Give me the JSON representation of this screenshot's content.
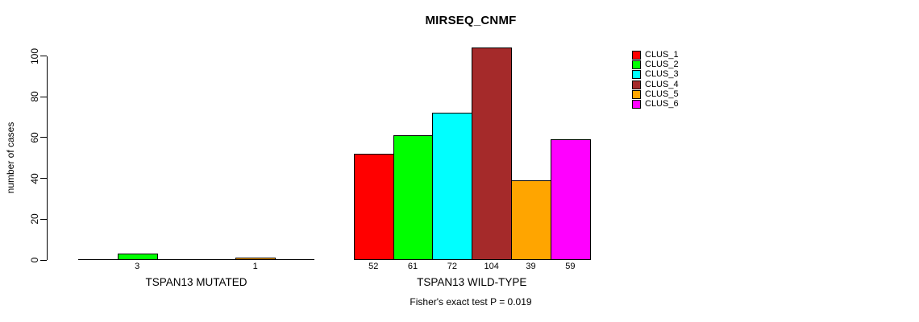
{
  "title": "MIRSEQ_CNMF",
  "footer": "Fisher's exact test P = 0.019",
  "y_axis": {
    "label": "number of cases",
    "ticks": [
      0,
      20,
      40,
      60,
      80,
      100
    ]
  },
  "legend": {
    "position": "top-right",
    "items": [
      {
        "label": "CLUS_1",
        "color": "#FF0000"
      },
      {
        "label": "CLUS_2",
        "color": "#00FF00"
      },
      {
        "label": "CLUS_3",
        "color": "#00FFFF"
      },
      {
        "label": "CLUS_4",
        "color": "#A52A2A"
      },
      {
        "label": "CLUS_5",
        "color": "#FFA500"
      },
      {
        "label": "CLUS_6",
        "color": "#FF00FF"
      }
    ]
  },
  "chart_data": {
    "type": "bar",
    "title": "MIRSEQ_CNMF",
    "xlabel": "",
    "ylabel": "number of cases",
    "ylim": [
      0,
      100
    ],
    "yticks": [
      0,
      20,
      40,
      60,
      80,
      100
    ],
    "grid": false,
    "legend_position": "top-right",
    "series": [
      "CLUS_1",
      "CLUS_2",
      "CLUS_3",
      "CLUS_4",
      "CLUS_5",
      "CLUS_6"
    ],
    "colors": [
      "#FF0000",
      "#00FF00",
      "#00FFFF",
      "#A52A2A",
      "#FFA500",
      "#FF00FF"
    ],
    "groups": [
      {
        "label": "TSPAN13 MUTATED",
        "values": [
          0,
          3,
          0,
          0,
          1,
          0
        ],
        "bar_labels": [
          "",
          "3",
          "",
          "",
          "1",
          ""
        ]
      },
      {
        "label": "TSPAN13 WILD-TYPE",
        "values": [
          52,
          61,
          72,
          104,
          39,
          59
        ],
        "bar_labels": [
          "52",
          "61",
          "72",
          "104",
          "39",
          "59"
        ]
      }
    ],
    "annotation": "Fisher's exact test P = 0.019"
  }
}
